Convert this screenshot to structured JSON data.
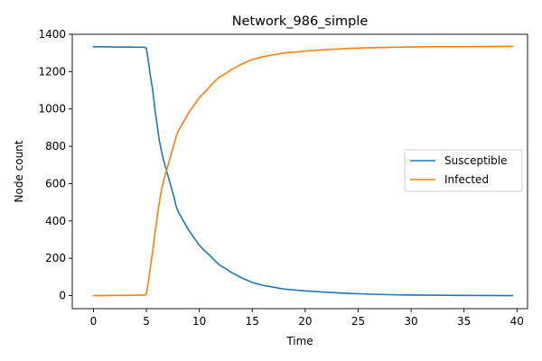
{
  "chart_data": {
    "type": "line",
    "title": "Network_986_simple",
    "xlabel": "Time",
    "ylabel": "Node count",
    "xlim": [
      -2,
      41
    ],
    "ylim": [
      -70,
      1400
    ],
    "xticks": [
      0,
      5,
      10,
      15,
      20,
      25,
      30,
      35,
      40
    ],
    "yticks": [
      0,
      200,
      400,
      600,
      800,
      1000,
      1200,
      1400
    ],
    "grid": false,
    "legend_position": "center-right",
    "series": [
      {
        "name": "Susceptible",
        "color": "#1f77b4",
        "x": [
          0,
          1,
          2,
          3,
          4,
          4.8,
          5.0,
          5.2,
          5.4,
          5.6,
          5.8,
          6.0,
          6.2,
          6.4,
          6.6,
          6.8,
          7.0,
          7.2,
          7.4,
          7.6,
          7.8,
          8.0,
          8.5,
          9.0,
          9.5,
          10.0,
          10.5,
          11.0,
          11.5,
          12.0,
          12.5,
          13.0,
          13.5,
          14.0,
          15.0,
          16.0,
          17.0,
          18.0,
          19.0,
          20.0,
          22.0,
          24.0,
          26.0,
          28.0,
          30.0,
          32.0,
          35.0,
          39.6
        ],
        "y": [
          1333,
          1333,
          1332,
          1332,
          1331,
          1331,
          1325,
          1250,
          1170,
          1100,
          1000,
          920,
          840,
          780,
          730,
          690,
          650,
          610,
          570,
          530,
          480,
          450,
          400,
          350,
          310,
          270,
          240,
          215,
          185,
          160,
          145,
          125,
          110,
          95,
          70,
          55,
          45,
          35,
          30,
          25,
          18,
          12,
          8,
          5,
          3,
          2,
          1,
          0
        ]
      },
      {
        "name": "Infected",
        "color": "#ff7f0e",
        "x": [
          0,
          1,
          2,
          3,
          4,
          4.8,
          5.0,
          5.2,
          5.4,
          5.6,
          5.8,
          6.0,
          6.2,
          6.4,
          6.6,
          6.8,
          7.0,
          7.2,
          7.4,
          7.6,
          7.8,
          8.0,
          8.5,
          9.0,
          9.5,
          10.0,
          10.5,
          11.0,
          11.5,
          12.0,
          12.5,
          13.0,
          13.5,
          14.0,
          15.0,
          16.0,
          17.0,
          18.0,
          19.0,
          20.0,
          22.0,
          24.0,
          26.0,
          28.0,
          30.0,
          32.0,
          35.0,
          39.6
        ],
        "y": [
          0,
          0,
          1,
          1,
          2,
          2,
          8,
          80,
          160,
          240,
          330,
          410,
          490,
          560,
          610,
          650,
          690,
          730,
          770,
          810,
          850,
          880,
          930,
          980,
          1020,
          1060,
          1090,
          1120,
          1150,
          1175,
          1190,
          1210,
          1225,
          1240,
          1265,
          1280,
          1290,
          1300,
          1305,
          1310,
          1318,
          1324,
          1328,
          1330,
          1332,
          1333,
          1334,
          1335
        ]
      }
    ]
  }
}
